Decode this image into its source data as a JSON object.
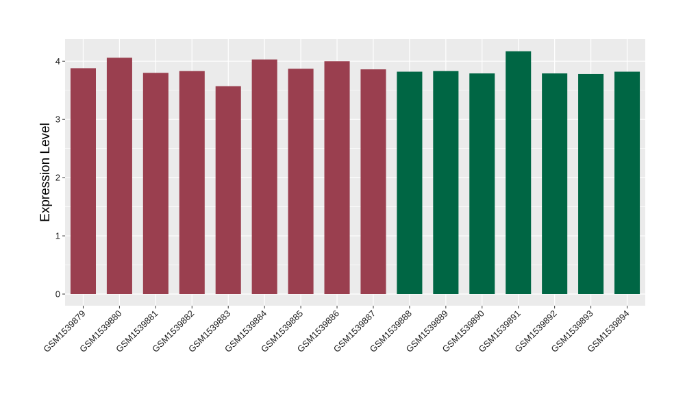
{
  "chart_data": {
    "type": "bar",
    "xlabel": "",
    "ylabel": "Expression Level",
    "ylim": [
      -0.2,
      4.38
    ],
    "yticks": [
      0,
      1,
      2,
      3,
      4
    ],
    "grid": true,
    "categories": [
      "GSM1539879",
      "GSM1539880",
      "GSM1539881",
      "GSM1539882",
      "GSM1539883",
      "GSM1539884",
      "GSM1539885",
      "GSM1539886",
      "GSM1539887",
      "GSM1539888",
      "GSM1539889",
      "GSM1539890",
      "GSM1539891",
      "GSM1539892",
      "GSM1539893",
      "GSM1539894"
    ],
    "values": [
      3.88,
      4.06,
      3.8,
      3.83,
      3.57,
      4.03,
      3.87,
      4.0,
      3.86,
      3.82,
      3.83,
      3.79,
      4.17,
      3.79,
      3.78,
      3.82
    ],
    "bar_colors": [
      "#9a3f4f",
      "#9a3f4f",
      "#9a3f4f",
      "#9a3f4f",
      "#9a3f4f",
      "#9a3f4f",
      "#9a3f4f",
      "#9a3f4f",
      "#9a3f4f",
      "#006644",
      "#006644",
      "#006644",
      "#006644",
      "#006644",
      "#006644",
      "#006644"
    ],
    "panel_background": "#ebebeb",
    "grid_color": "#ffffff"
  }
}
